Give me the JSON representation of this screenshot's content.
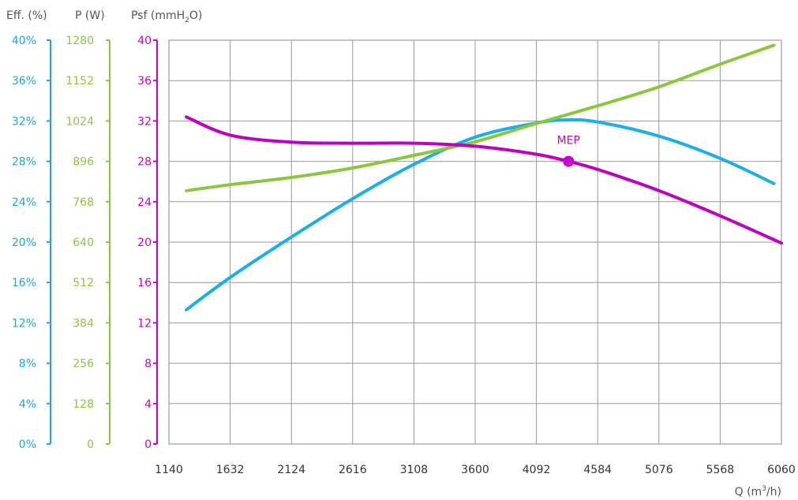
{
  "chart_data": {
    "type": "line",
    "title": "",
    "xlabel": "Q (m3/h)",
    "xlabel_parts": {
      "pre": "Q (m",
      "sup": "3",
      "post": "/h)"
    },
    "x_ticks": [
      1140,
      1632,
      2124,
      2616,
      3108,
      3600,
      4092,
      4584,
      5076,
      5568,
      6060
    ],
    "xlim": [
      1140,
      6060
    ],
    "grid": true,
    "axes": [
      {
        "id": "psf",
        "label": "Psf (mmH2O)",
        "label_parts": {
          "pre": "Psf (mmH",
          "sub": "2",
          "post": "O)"
        },
        "color": "#cc00cc",
        "ylim": [
          0,
          40
        ],
        "ticks": [
          "0",
          "4",
          "8",
          "12",
          "16",
          "20",
          "24",
          "28",
          "32",
          "36",
          "40"
        ]
      },
      {
        "id": "power",
        "label": "P (W)",
        "color": "#8cc63f",
        "ylim": [
          0,
          1280
        ],
        "ticks": [
          "0",
          "128",
          "256",
          "384",
          "512",
          "640",
          "768",
          "896",
          "1024",
          "1152",
          "1280"
        ]
      },
      {
        "id": "eff",
        "label": "Eff. (%)",
        "color": "#1aa7e0",
        "ylim": [
          0,
          40
        ],
        "ticks": [
          "0%",
          "4%",
          "8%",
          "12%",
          "16%",
          "20%",
          "24%",
          "28%",
          "32%",
          "36%",
          "40%"
        ]
      }
    ],
    "series": [
      {
        "axis": "eff",
        "color": "#1aafe6",
        "x": [
          1280,
          1632,
          2124,
          2616,
          3108,
          3600,
          4092,
          4330,
          4584,
          5076,
          5568,
          6000
        ],
        "y": [
          13.3,
          16.5,
          20.5,
          24.3,
          27.7,
          30.4,
          31.8,
          32.1,
          31.9,
          30.5,
          28.3,
          25.8
        ]
      },
      {
        "axis": "power",
        "color": "#8cc63f",
        "x": [
          1280,
          1632,
          2124,
          2616,
          3108,
          3600,
          4092,
          4584,
          5076,
          5568,
          6000
        ],
        "y": [
          803,
          822,
          845,
          875,
          915,
          958,
          1016,
          1072,
          1132,
          1204,
          1264
        ]
      },
      {
        "axis": "psf",
        "color": "#c000c0",
        "x": [
          1280,
          1632,
          2124,
          2616,
          3108,
          3600,
          4092,
          4350,
          4584,
          5076,
          5568,
          6060
        ],
        "y": [
          32.4,
          30.6,
          29.9,
          29.8,
          29.8,
          29.5,
          28.7,
          28.0,
          27.2,
          25.1,
          22.6,
          19.9
        ]
      }
    ],
    "annotations": [
      {
        "label": "MEP",
        "axis": "psf",
        "x": 4350,
        "y": 28.0,
        "color": "#cc00cc"
      }
    ]
  }
}
